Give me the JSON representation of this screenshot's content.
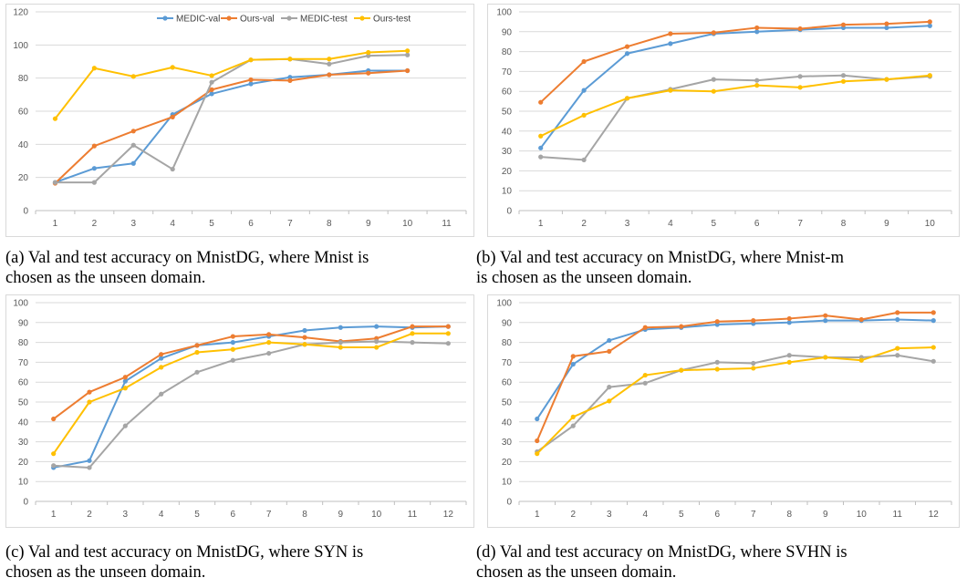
{
  "colors": {
    "medic_val": "#5B9BD5",
    "ours_val": "#ED7D31",
    "medic_test": "#A5A5A5",
    "ours_test": "#FFC000",
    "grid": "#d9d9d9",
    "tick_text": "#595959"
  },
  "captions": [
    {
      "line1": "(a) Val and test accuracy on MnistDG, where Mnist is",
      "line2": "chosen as the unseen domain."
    },
    {
      "line1": "(b) Val and test accuracy on MnistDG, where Mnist-m",
      "line2": "is chosen as the unseen domain."
    },
    {
      "line1": "(c) Val and test accuracy on MnistDG, where SYN is",
      "line2": "chosen as the unseen domain."
    },
    {
      "line1": "(d) Val and test accuracy on MnistDG, where SVHN is",
      "line2": "chosen as the unseen domain."
    }
  ],
  "chart_data": [
    {
      "type": "line",
      "xlabel": "",
      "ylabel": "",
      "categories": [
        "1",
        "2",
        "3",
        "4",
        "5",
        "6",
        "7",
        "8",
        "9",
        "10",
        "11"
      ],
      "ylim": [
        0,
        120
      ],
      "yticks": [
        0,
        20,
        40,
        60,
        80,
        100,
        120
      ],
      "grid": "horizontal",
      "legend": "top-center",
      "series": [
        {
          "name": "MEDIC-val",
          "values": [
            17,
            25.5,
            28.5,
            58,
            70.5,
            76.5,
            80.5,
            82,
            84.5,
            84.5,
            null
          ]
        },
        {
          "name": "Ours-val",
          "values": [
            16.5,
            39,
            48,
            56.5,
            73,
            79,
            78.5,
            82,
            83,
            84.5,
            null
          ]
        },
        {
          "name": "MEDIC-test",
          "values": [
            17,
            17,
            39.5,
            25,
            77.5,
            91,
            91.5,
            88.5,
            93.5,
            94,
            null
          ]
        },
        {
          "name": "Ours-test",
          "values": [
            55.5,
            86,
            81,
            86.5,
            81.5,
            91,
            91.5,
            91.5,
            95.5,
            96.5,
            null
          ]
        }
      ]
    },
    {
      "type": "line",
      "xlabel": "",
      "ylabel": "",
      "categories": [
        "1",
        "2",
        "3",
        "4",
        "5",
        "6",
        "7",
        "8",
        "9",
        "10"
      ],
      "ylim": [
        0,
        100
      ],
      "yticks": [
        0,
        10,
        20,
        30,
        40,
        50,
        60,
        70,
        80,
        90,
        100
      ],
      "grid": "horizontal",
      "legend": "none",
      "series": [
        {
          "name": "MEDIC-val",
          "values": [
            31.5,
            60.5,
            79,
            84,
            89,
            90,
            91,
            92,
            92,
            93
          ]
        },
        {
          "name": "Ours-val",
          "values": [
            54.5,
            75,
            82.5,
            89,
            89.5,
            92,
            91.5,
            93.5,
            94,
            95
          ]
        },
        {
          "name": "MEDIC-test",
          "values": [
            27,
            25.5,
            56.5,
            61,
            66,
            65.5,
            67.5,
            68,
            66,
            67.5
          ]
        },
        {
          "name": "Ours-test",
          "values": [
            37.5,
            48,
            56.5,
            60.5,
            60,
            63,
            62,
            65,
            66,
            68
          ]
        }
      ]
    },
    {
      "type": "line",
      "xlabel": "",
      "ylabel": "",
      "categories": [
        "1",
        "2",
        "3",
        "4",
        "5",
        "6",
        "7",
        "8",
        "9",
        "10",
        "11",
        "12"
      ],
      "ylim": [
        0,
        100
      ],
      "yticks": [
        0,
        10,
        20,
        30,
        40,
        50,
        60,
        70,
        80,
        90,
        100
      ],
      "grid": "horizontal",
      "legend": "none",
      "series": [
        {
          "name": "MEDIC-val",
          "values": [
            17,
            20.5,
            60.5,
            72,
            78.5,
            80,
            83,
            86,
            87.5,
            88,
            87.5,
            88
          ]
        },
        {
          "name": "Ours-val",
          "values": [
            41.5,
            55,
            62.5,
            74,
            78.5,
            83,
            84,
            82.5,
            80.5,
            82,
            88,
            88
          ]
        },
        {
          "name": "MEDIC-test",
          "values": [
            18,
            17,
            38,
            54,
            65,
            71,
            74.5,
            79,
            80,
            80.5,
            80,
            79.5
          ]
        },
        {
          "name": "Ours-test",
          "values": [
            24,
            50,
            57,
            67.5,
            75,
            76.5,
            80,
            79,
            77.5,
            77.5,
            84.5,
            84.5
          ]
        }
      ]
    },
    {
      "type": "line",
      "xlabel": "",
      "ylabel": "",
      "categories": [
        "1",
        "2",
        "3",
        "4",
        "5",
        "6",
        "7",
        "8",
        "9",
        "10",
        "11",
        "12"
      ],
      "ylim": [
        0,
        100
      ],
      "yticks": [
        0,
        10,
        20,
        30,
        40,
        50,
        60,
        70,
        80,
        90,
        100
      ],
      "grid": "horizontal",
      "legend": "none",
      "series": [
        {
          "name": "MEDIC-val",
          "values": [
            41.5,
            69,
            81,
            86.5,
            87.5,
            89,
            89.5,
            90,
            91,
            91,
            91.5,
            91
          ]
        },
        {
          "name": "Ours-val",
          "values": [
            30.5,
            73,
            75.5,
            87.5,
            88,
            90.5,
            91,
            92,
            93.5,
            91.5,
            95,
            95
          ]
        },
        {
          "name": "MEDIC-test",
          "values": [
            25,
            38,
            57.5,
            59.5,
            66,
            70,
            69.5,
            73.5,
            72.5,
            72.5,
            73.5,
            70.5
          ]
        },
        {
          "name": "Ours-test",
          "values": [
            24,
            42.5,
            50.5,
            63.5,
            66,
            66.5,
            67,
            70,
            72.5,
            71,
            77,
            77.5
          ]
        }
      ]
    }
  ]
}
